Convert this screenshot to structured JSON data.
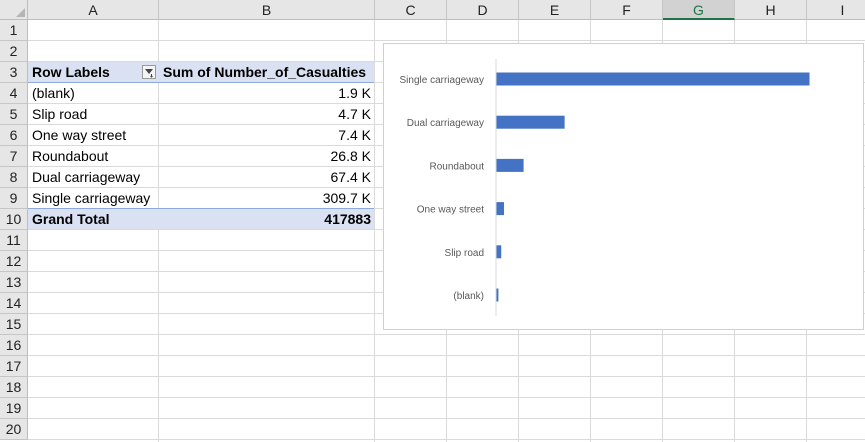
{
  "sheet": {
    "columns": [
      "A",
      "B",
      "C",
      "D",
      "E",
      "F",
      "G",
      "H",
      "I"
    ],
    "selected_column": "G",
    "rows": [
      "1",
      "2",
      "3",
      "4",
      "5",
      "6",
      "7",
      "8",
      "9",
      "10",
      "11",
      "12",
      "13",
      "14",
      "15",
      "16",
      "17",
      "18",
      "19",
      "20"
    ]
  },
  "pivot": {
    "header_labels": "Row Labels",
    "header_values": "Sum of Number_of_Casualties",
    "rows": [
      {
        "label": "(blank)",
        "value": "1.9 K"
      },
      {
        "label": "Slip road",
        "value": "4.7 K"
      },
      {
        "label": "One way street",
        "value": "7.4 K"
      },
      {
        "label": "Roundabout",
        "value": "26.8 K"
      },
      {
        "label": "Dual carriageway",
        "value": "67.4 K"
      },
      {
        "label": "Single carriageway",
        "value": "309.7 K"
      }
    ],
    "total_label": "Grand Total",
    "total_value": "417883",
    "filter_icon": "sort-filter-icon",
    "header_fill": "#d9e1f2"
  },
  "chart_data": {
    "type": "bar",
    "orientation": "horizontal",
    "categories": [
      "Single carriageway",
      "Dual carriageway",
      "Roundabout",
      "One way street",
      "Slip road",
      "(blank)"
    ],
    "values": [
      309700,
      67400,
      26800,
      7400,
      4700,
      1900
    ],
    "xlim": [
      0,
      309700
    ],
    "title": "",
    "xlabel": "",
    "ylabel": "",
    "grid": false,
    "legend": "none",
    "bar_color": "#4472c4"
  }
}
